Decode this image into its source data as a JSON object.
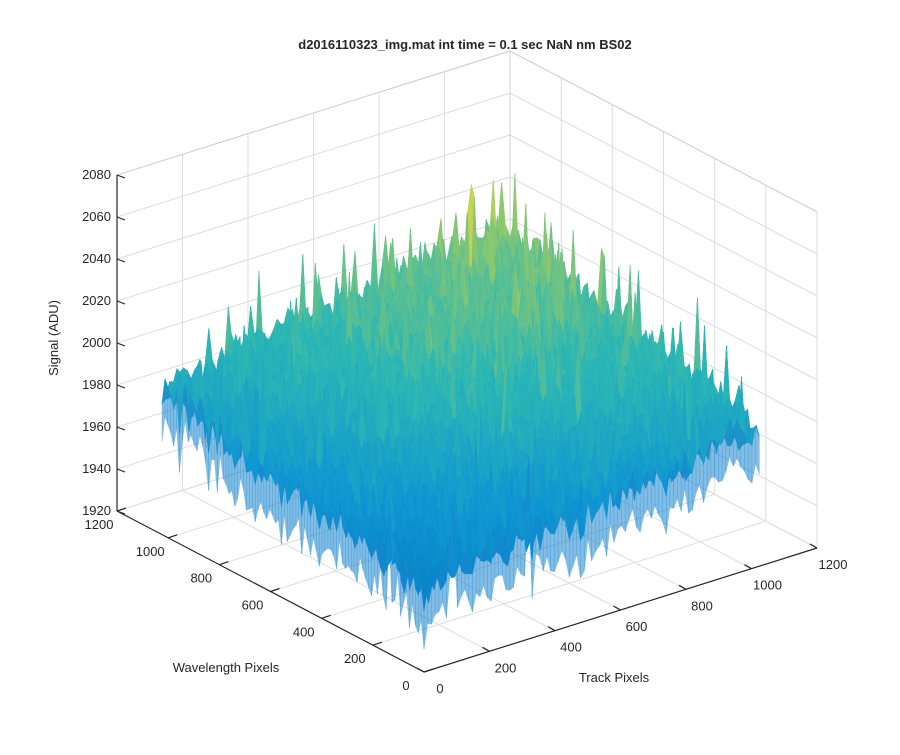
{
  "chart_data": {
    "type": "surface",
    "title": "d2016110323_img.mat int time = 0.1 sec  NaN nm BS02",
    "xlabel": "Track Pixels",
    "ylabel": "Wavelength Pixels",
    "zlabel": "Signal (ADU)",
    "xlim": [
      0,
      1200
    ],
    "ylim": [
      0,
      1200
    ],
    "zlim": [
      1920,
      2080
    ],
    "x_ticks": [
      "0",
      "200",
      "400",
      "600",
      "800",
      "1000",
      "1200"
    ],
    "y_ticks": [
      "0",
      "200",
      "400",
      "600",
      "800",
      "1000",
      "1200"
    ],
    "z_ticks": [
      "1920",
      "1940",
      "1960",
      "1980",
      "2000",
      "2020",
      "2040",
      "2060",
      "2080"
    ],
    "data_x_range": [
      0,
      1024
    ],
    "data_y_range": [
      0,
      1024
    ],
    "approx_signal": {
      "near_corner_mean": 1960,
      "center_mean": 2000,
      "far_corner_mean": 2015,
      "peak": 2063,
      "min": 1925
    },
    "colormap": "parula",
    "colors": {
      "low": "#0072BD",
      "mid": "#2CB7B4",
      "high": "#E6D742"
    },
    "grid": true,
    "view": "3d-default"
  }
}
